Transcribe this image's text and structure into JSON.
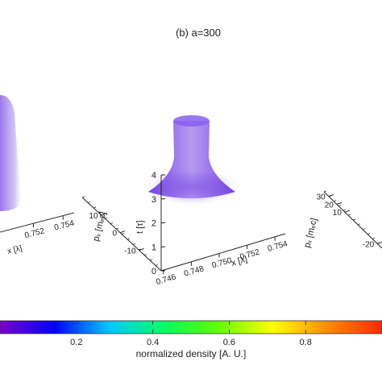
{
  "title": "(b) a=300",
  "chart_data": {
    "type": "heatmap",
    "title": "(b) a=300",
    "panels": [
      {
        "position": "center",
        "x_axis": {
          "label": "x [λ]",
          "ticks": [
            "0.746",
            "0.748",
            "0.750",
            "0.752",
            "0.754"
          ]
        },
        "t_axis": {
          "label": "t [τ]",
          "ticks": [
            "0",
            "1",
            "2",
            "3",
            "4"
          ]
        },
        "p_axis": {
          "label": "p_x [m_e c]",
          "ticks": [
            "-10",
            "0",
            "10"
          ]
        }
      },
      {
        "position": "left (cropped)",
        "x_axis": {
          "label": "x [λ]",
          "ticks": [
            "0.752",
            "0.754"
          ]
        }
      },
      {
        "position": "right (cropped)",
        "p_axis": {
          "label": "p_x [m_e c]",
          "ticks": [
            "30",
            "20",
            "10",
            "-20"
          ]
        }
      }
    ],
    "colorbar": {
      "label": "normalized density [A. U.]",
      "ticks": [
        "0.2",
        "0.4",
        "0.6",
        "0.8"
      ],
      "range": [
        0,
        1
      ],
      "colormap": [
        "#7b00c8",
        "#0000ff",
        "#00c8ff",
        "#00ff64",
        "#64ff00",
        "#ffff00",
        "#ff8c00",
        "#ff2800"
      ]
    },
    "marker_color": "#6a2fd8"
  }
}
